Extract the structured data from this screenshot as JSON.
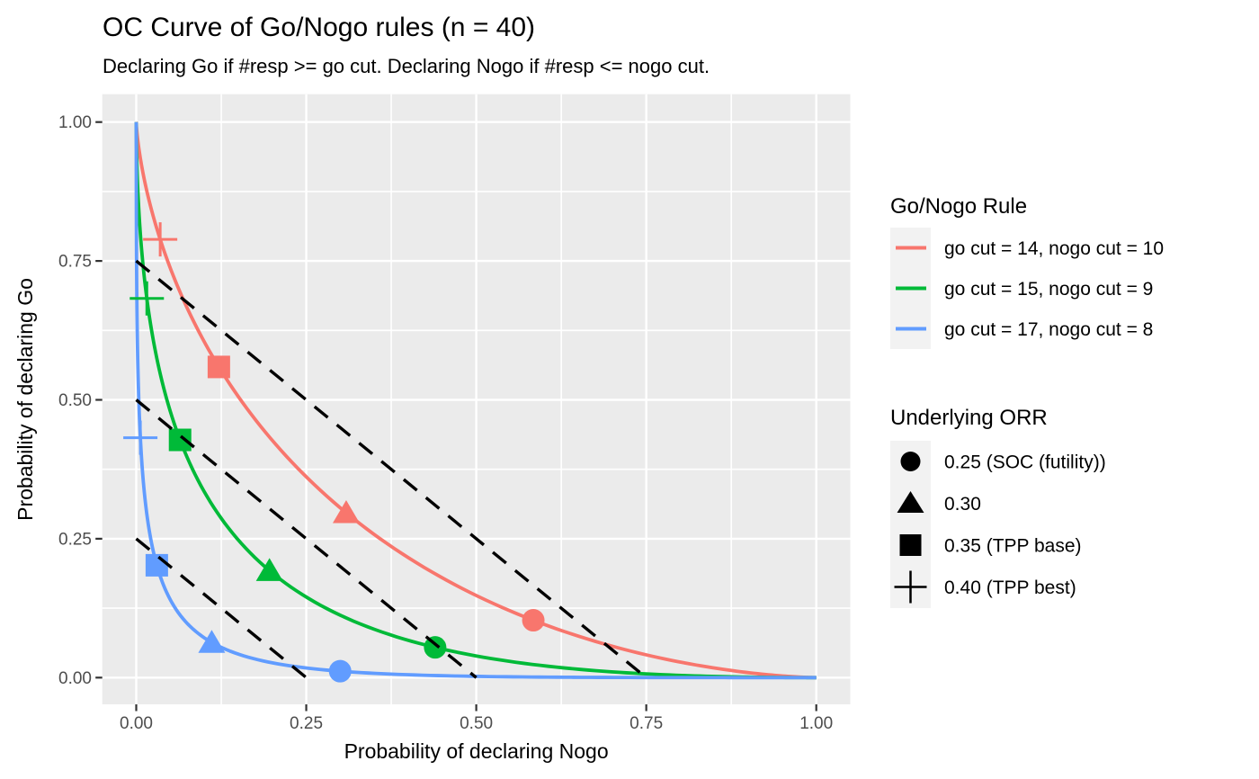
{
  "title": "OC Curve of Go/Nogo rules (n = 40)",
  "subtitle": "Declaring Go if #resp >= go cut. Declaring Nogo if #resp <= nogo cut.",
  "axes": {
    "x_label": "Probability of declaring Nogo",
    "y_label": "Probability of declaring Go"
  },
  "legends": {
    "rule": {
      "title": "Go/Nogo Rule"
    },
    "orr": {
      "title": "Underlying ORR"
    }
  },
  "chart_data": {
    "type": "line",
    "title": "OC Curve of Go/Nogo rules (n = 40)",
    "subtitle": "Declaring Go if #resp >= go cut. Declaring Nogo if #resp <= nogo cut.",
    "xlabel": "Probability of declaring Nogo",
    "ylabel": "Probability of declaring Go",
    "xlim": [
      0,
      1
    ],
    "ylim": [
      0,
      1
    ],
    "grid": true,
    "legend_position": "right",
    "sample_size_n": 40,
    "x_ticks": [
      0,
      0.25,
      0.5,
      0.75,
      1
    ],
    "y_ticks": [
      0,
      0.25,
      0.5,
      0.75,
      1
    ],
    "x_tick_labels": [
      "0.00",
      "0.25",
      "0.50",
      "0.75",
      "1.00"
    ],
    "y_tick_labels": [
      "0.00",
      "0.25",
      "0.50",
      "0.75",
      "1.00"
    ],
    "series": [
      {
        "name": "go cut = 14, nogo cut = 10",
        "color": "#F8766D",
        "go_cut": 14,
        "nogo_cut": 10,
        "points_at_orr": [
          {
            "orr": 0.25,
            "x": 0.58,
            "y": 0.11
          },
          {
            "orr": 0.3,
            "x": 0.31,
            "y": 0.31
          },
          {
            "orr": 0.35,
            "x": 0.12,
            "y": 0.56
          },
          {
            "orr": 0.4,
            "x": 0.035,
            "y": 0.79
          }
        ]
      },
      {
        "name": "go cut = 15, nogo cut = 9",
        "color": "#00BA38",
        "go_cut": 15,
        "nogo_cut": 9,
        "points_at_orr": [
          {
            "orr": 0.25,
            "x": 0.43,
            "y": 0.05
          },
          {
            "orr": 0.3,
            "x": 0.2,
            "y": 0.2
          },
          {
            "orr": 0.35,
            "x": 0.065,
            "y": 0.43
          },
          {
            "orr": 0.4,
            "x": 0.017,
            "y": 0.69
          }
        ]
      },
      {
        "name": "go cut = 17, nogo cut = 8",
        "color": "#619CFF",
        "go_cut": 17,
        "nogo_cut": 8,
        "points_at_orr": [
          {
            "orr": 0.25,
            "x": 0.3,
            "y": 0.01
          },
          {
            "orr": 0.3,
            "x": 0.11,
            "y": 0.065
          },
          {
            "orr": 0.35,
            "x": 0.032,
            "y": 0.2
          },
          {
            "orr": 0.4,
            "x": 0.008,
            "y": 0.43
          }
        ]
      }
    ],
    "orr_markers": [
      {
        "value": 0.25,
        "shape": "circle",
        "label": "0.25 (SOC (futility))"
      },
      {
        "value": 0.3,
        "shape": "triangle",
        "label": "0.30"
      },
      {
        "value": 0.35,
        "shape": "square",
        "label": "0.35 (TPP base)"
      },
      {
        "value": 0.4,
        "shape": "plus",
        "label": "0.40 (TPP best)"
      }
    ],
    "reference_lines": [
      {
        "slope": -1,
        "intercept": 0.25,
        "style": "dashed",
        "color": "#000000"
      },
      {
        "slope": -1,
        "intercept": 0.5,
        "style": "dashed",
        "color": "#000000"
      },
      {
        "slope": -1,
        "intercept": 0.75,
        "style": "dashed",
        "color": "#000000"
      }
    ],
    "colors": {
      "panel_bg": "#EBEBEB",
      "grid": "#FFFFFF",
      "legend_key_bg": "#F2F2F2",
      "tick_text": "#4D4D4D",
      "tick_mark": "#333333"
    }
  }
}
